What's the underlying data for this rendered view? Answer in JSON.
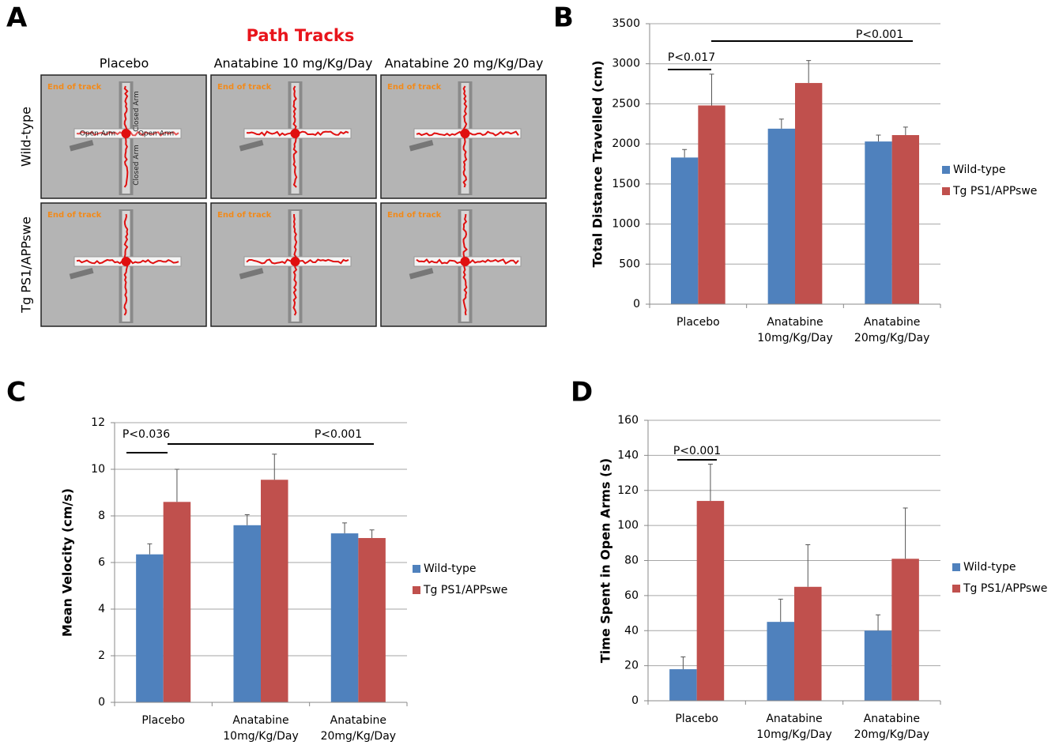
{
  "panel_a": {
    "label": "A",
    "title": "Path Tracks",
    "columns": [
      "Placebo",
      "Anatabine 10 mg/Kg/Day",
      "Anatabine 20 mg/Kg/Day"
    ],
    "rows": [
      "Wild-type",
      "Tg PS1/APPswe"
    ],
    "track_end_label": "End of track",
    "open_arm_label": "Open Arm",
    "closed_arm_label": "Closed Arm"
  },
  "chart_data": [
    {
      "type": "bar",
      "label": "B",
      "y_label": "Total Distance Travelled (cm)",
      "categories": [
        [
          "Placebo"
        ],
        [
          "Anatabine",
          "10mg/Kg/Day"
        ],
        [
          "Anatabine",
          "20mg/Kg/Day"
        ]
      ],
      "series": [
        {
          "name": "Wild-type",
          "color": "#4f81bd",
          "values": [
            1830,
            2190,
            2030
          ],
          "errors": [
            100,
            120,
            80
          ]
        },
        {
          "name": "Tg PS1/APPswe",
          "color": "#c0504d",
          "values": [
            2480,
            2760,
            2110
          ],
          "errors": [
            390,
            280,
            100
          ]
        }
      ],
      "ylim": [
        0,
        3500
      ],
      "yticks": [
        0,
        500,
        1000,
        1500,
        2000,
        2500,
        3000,
        3500
      ],
      "grid": true,
      "annotations": [
        "P<0.017",
        "P<0.001"
      ]
    },
    {
      "type": "bar",
      "label": "C",
      "y_label": "Mean Velocity (cm/s)",
      "categories": [
        [
          "Placebo"
        ],
        [
          "Anatabine",
          "10mg/Kg/Day"
        ],
        [
          "Anatabine",
          "20mg/Kg/Day"
        ]
      ],
      "series": [
        {
          "name": "Wild-type",
          "color": "#4f81bd",
          "values": [
            6.35,
            7.6,
            7.25
          ],
          "errors": [
            0.45,
            0.45,
            0.45
          ]
        },
        {
          "name": "Tg PS1/APPswe",
          "color": "#c0504d",
          "values": [
            8.6,
            9.55,
            7.05
          ],
          "errors": [
            1.4,
            1.1,
            0.35
          ]
        }
      ],
      "ylim": [
        0,
        12
      ],
      "yticks": [
        0,
        2,
        4,
        6,
        8,
        10,
        12
      ],
      "grid": true,
      "annotations": [
        "P<0.036",
        "P<0.001"
      ]
    },
    {
      "type": "bar",
      "label": "D",
      "y_label": "Time Spent in Open Arms (s)",
      "categories": [
        [
          "Placebo"
        ],
        [
          "Anatabine",
          "10mg/Kg/Day"
        ],
        [
          "Anatabine",
          "20mg/Kg/Day"
        ]
      ],
      "series": [
        {
          "name": "Wild-type",
          "color": "#4f81bd",
          "values": [
            18,
            45,
            40
          ],
          "errors": [
            7,
            13,
            9
          ]
        },
        {
          "name": "Tg PS1/APPswe",
          "color": "#c0504d",
          "values": [
            114,
            65,
            81
          ],
          "errors": [
            21,
            24,
            29
          ]
        }
      ],
      "ylim": [
        0,
        160
      ],
      "yticks": [
        0,
        20,
        40,
        60,
        80,
        100,
        120,
        140,
        160
      ],
      "grid": true,
      "annotations": [
        "P<0.001"
      ]
    }
  ]
}
